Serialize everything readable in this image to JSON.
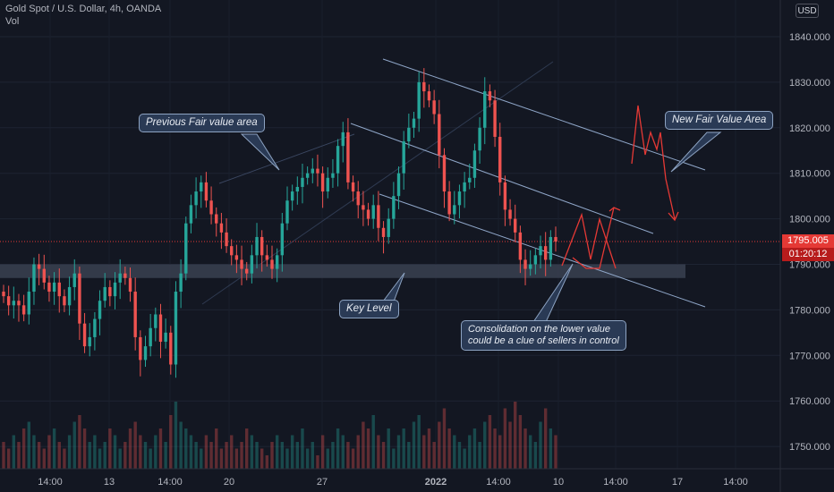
{
  "header": {
    "symbol": "Gold Spot / U.S. Dollar, 4h, OANDA",
    "volume_label": "Vol"
  },
  "axis": {
    "currency": "USD",
    "y_ticks": [
      "1840.000",
      "1830.000",
      "1820.000",
      "1810.000",
      "1800.000",
      "1790.000",
      "1780.000",
      "1770.000",
      "1760.000",
      "1750.000"
    ],
    "x_ticks": [
      "14:00",
      "13",
      "14:00",
      "20",
      "27",
      "2022",
      "14:00",
      "10",
      "14:00",
      "17",
      "14:00"
    ]
  },
  "price_tag": {
    "price": "1795.005",
    "countdown": "01:20:12"
  },
  "annotations": {
    "previous_fair": "Previous Fair value area",
    "new_fair": "New Fair Value Area",
    "key_level": "Key Level",
    "consolidation_line1": "Consolidation on the lower value",
    "consolidation_line2": "could be a clue of sellers in control"
  },
  "colors": {
    "background": "#131722",
    "up": "#26a69a",
    "down": "#ef5350",
    "trendline": "#8fa6c8",
    "projection": "#e53935",
    "key_zone": "#3a4150"
  },
  "chart_data": {
    "type": "candlestick",
    "symbol": "XAUUSD",
    "timeframe": "4h",
    "y_range": [
      1745,
      1846
    ],
    "current_price": 1795.005,
    "key_level_zone": [
      1787,
      1790
    ],
    "closes": [
      1783,
      1781,
      1782,
      1781,
      1779,
      1784,
      1790,
      1789,
      1786,
      1784,
      1786,
      1783,
      1781,
      1785,
      1788,
      1777,
      1772,
      1774,
      1778,
      1782,
      1785,
      1783,
      1786,
      1788,
      1787,
      1784,
      1774,
      1769,
      1772,
      1776,
      1779,
      1773,
      1775,
      1768,
      1784,
      1788,
      1799,
      1803,
      1806,
      1808,
      1804,
      1801,
      1799,
      1797,
      1794,
      1792,
      1791,
      1789,
      1788,
      1792,
      1796,
      1792,
      1791,
      1789,
      1792,
      1799,
      1804,
      1806,
      1807,
      1809,
      1810,
      1811,
      1810,
      1806,
      1809,
      1810,
      1816,
      1819,
      1808,
      1806,
      1803,
      1802,
      1800,
      1803,
      1798,
      1796,
      1800,
      1805,
      1810,
      1817,
      1820,
      1822,
      1830,
      1828,
      1826,
      1823,
      1814,
      1806,
      1801,
      1803,
      1806,
      1808,
      1809,
      1815,
      1820,
      1828,
      1826,
      1818,
      1808,
      1802,
      1800,
      1797,
      1791,
      1789,
      1790,
      1792,
      1794,
      1791,
      1796,
      1795
    ],
    "volume_relative": [
      0.4,
      0.3,
      0.5,
      0.4,
      0.6,
      0.7,
      0.5,
      0.4,
      0.3,
      0.5,
      0.6,
      0.4,
      0.3,
      0.5,
      0.7,
      0.8,
      0.6,
      0.4,
      0.5,
      0.3,
      0.4,
      0.6,
      0.5,
      0.3,
      0.4,
      0.6,
      0.7,
      0.5,
      0.4,
      0.3,
      0.5,
      0.6,
      0.4,
      0.8,
      1.0,
      0.7,
      0.6,
      0.5,
      0.4,
      0.3,
      0.5,
      0.4,
      0.6,
      0.3,
      0.4,
      0.5,
      0.3,
      0.4,
      0.6,
      0.5,
      0.4,
      0.3,
      0.2,
      0.4,
      0.5,
      0.4,
      0.3,
      0.5,
      0.4,
      0.6,
      0.3,
      0.4,
      0.2,
      0.5,
      0.3,
      0.4,
      0.6,
      0.5,
      0.4,
      0.3,
      0.5,
      0.7,
      0.6,
      0.8,
      0.5,
      0.4,
      0.6,
      0.3,
      0.5,
      0.6,
      0.4,
      0.7,
      0.8,
      0.5,
      0.6,
      0.4,
      0.7,
      0.9,
      0.6,
      0.5,
      0.4,
      0.3,
      0.5,
      0.6,
      0.4,
      0.7,
      0.8,
      0.6,
      0.5,
      0.9,
      0.7,
      1.0,
      0.8,
      0.6,
      0.5,
      0.4,
      0.7,
      0.9,
      0.6,
      0.5
    ]
  }
}
